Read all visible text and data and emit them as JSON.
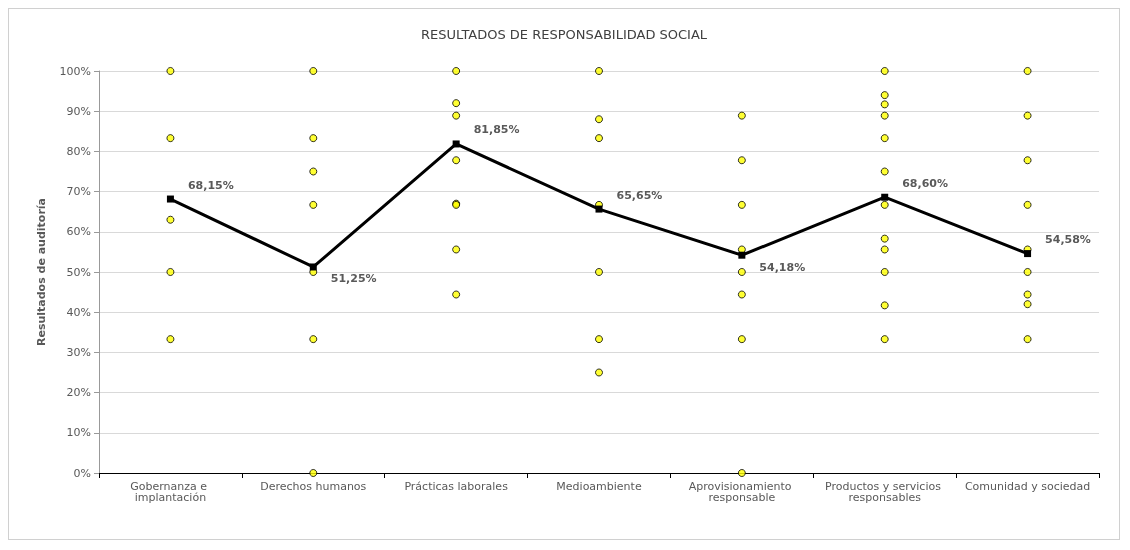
{
  "chart_data": {
    "type": "line",
    "title": "RESULTADOS DE RESPONSABILIDAD SOCIAL",
    "ylabel": "Resultados de auditoría",
    "categories": [
      "Gobernanza e implantación",
      "Derechos humanos",
      "Prácticas laborales",
      "Medioambiente",
      "Aprovisionamiento responsable",
      "Productos y servicios responsables",
      "Comunidad y sociedad"
    ],
    "ylim": [
      0,
      100
    ],
    "yticks": [
      {
        "value": 0,
        "label": "0%"
      },
      {
        "value": 10,
        "label": "10%"
      },
      {
        "value": 20,
        "label": "20%"
      },
      {
        "value": 30,
        "label": "30%"
      },
      {
        "value": 40,
        "label": "40%"
      },
      {
        "value": 50,
        "label": "50%"
      },
      {
        "value": 60,
        "label": "60%"
      },
      {
        "value": 70,
        "label": "70%"
      },
      {
        "value": 80,
        "label": "80%"
      },
      {
        "value": 90,
        "label": "90%"
      },
      {
        "value": 100,
        "label": "100%"
      }
    ],
    "grid": "y",
    "series": [
      {
        "type": "scatter",
        "color": "#ffff00",
        "marker": "circle",
        "x": [
          "Gobernanza e implantación",
          "Gobernanza e implantación",
          "Gobernanza e implantación",
          "Gobernanza e implantación",
          "Gobernanza e implantación",
          "Derechos humanos",
          "Derechos humanos",
          "Derechos humanos",
          "Derechos humanos",
          "Derechos humanos",
          "Derechos humanos",
          "Derechos humanos",
          "Prácticas laborales",
          "Prácticas laborales",
          "Prácticas laborales",
          "Prácticas laborales",
          "Prácticas laborales",
          "Prácticas laborales",
          "Prácticas laborales",
          "Prácticas laborales",
          "Medioambiente",
          "Medioambiente",
          "Medioambiente",
          "Medioambiente",
          "Medioambiente",
          "Medioambiente",
          "Medioambiente",
          "Aprovisionamiento responsable",
          "Aprovisionamiento responsable",
          "Aprovisionamiento responsable",
          "Aprovisionamiento responsable",
          "Aprovisionamiento responsable",
          "Aprovisionamiento responsable",
          "Aprovisionamiento responsable",
          "Aprovisionamiento responsable",
          "Productos y servicios responsables",
          "Productos y servicios responsables",
          "Productos y servicios responsables",
          "Productos y servicios responsables",
          "Productos y servicios responsables",
          "Productos y servicios responsables",
          "Productos y servicios responsables",
          "Productos y servicios responsables",
          "Productos y servicios responsables",
          "Productos y servicios responsables",
          "Productos y servicios responsables",
          "Productos y servicios responsables",
          "Comunidad y sociedad",
          "Comunidad y sociedad",
          "Comunidad y sociedad",
          "Comunidad y sociedad",
          "Comunidad y sociedad",
          "Comunidad y sociedad",
          "Comunidad y sociedad",
          "Comunidad y sociedad",
          "Comunidad y sociedad"
        ],
        "values": [
          100,
          83.3,
          63,
          50,
          33.3,
          100,
          83.3,
          75,
          66.7,
          50,
          33.3,
          0,
          100,
          92,
          88.9,
          77.8,
          67,
          66.7,
          55.6,
          44.4,
          100,
          88,
          83.3,
          66.7,
          50,
          33.3,
          25,
          88.9,
          77.8,
          66.7,
          55.6,
          50,
          44.4,
          33.3,
          0,
          100,
          94,
          91.7,
          88.9,
          83.3,
          75,
          66.7,
          58.3,
          55.6,
          50,
          41.7,
          33.3,
          100,
          88.9,
          77.8,
          66.7,
          55.6,
          50,
          44.4,
          42,
          33.3
        ]
      },
      {
        "color": "#000000",
        "marker": "square",
        "line_style": "solid",
        "values": [
          68.15,
          51.25,
          81.85,
          65.65,
          54.18,
          68.6,
          54.58
        ],
        "value_labels": [
          "68,15%",
          "51,25%",
          "81,85%",
          "65,65%",
          "54,18%",
          "68,60%",
          "54,58%"
        ]
      }
    ]
  }
}
